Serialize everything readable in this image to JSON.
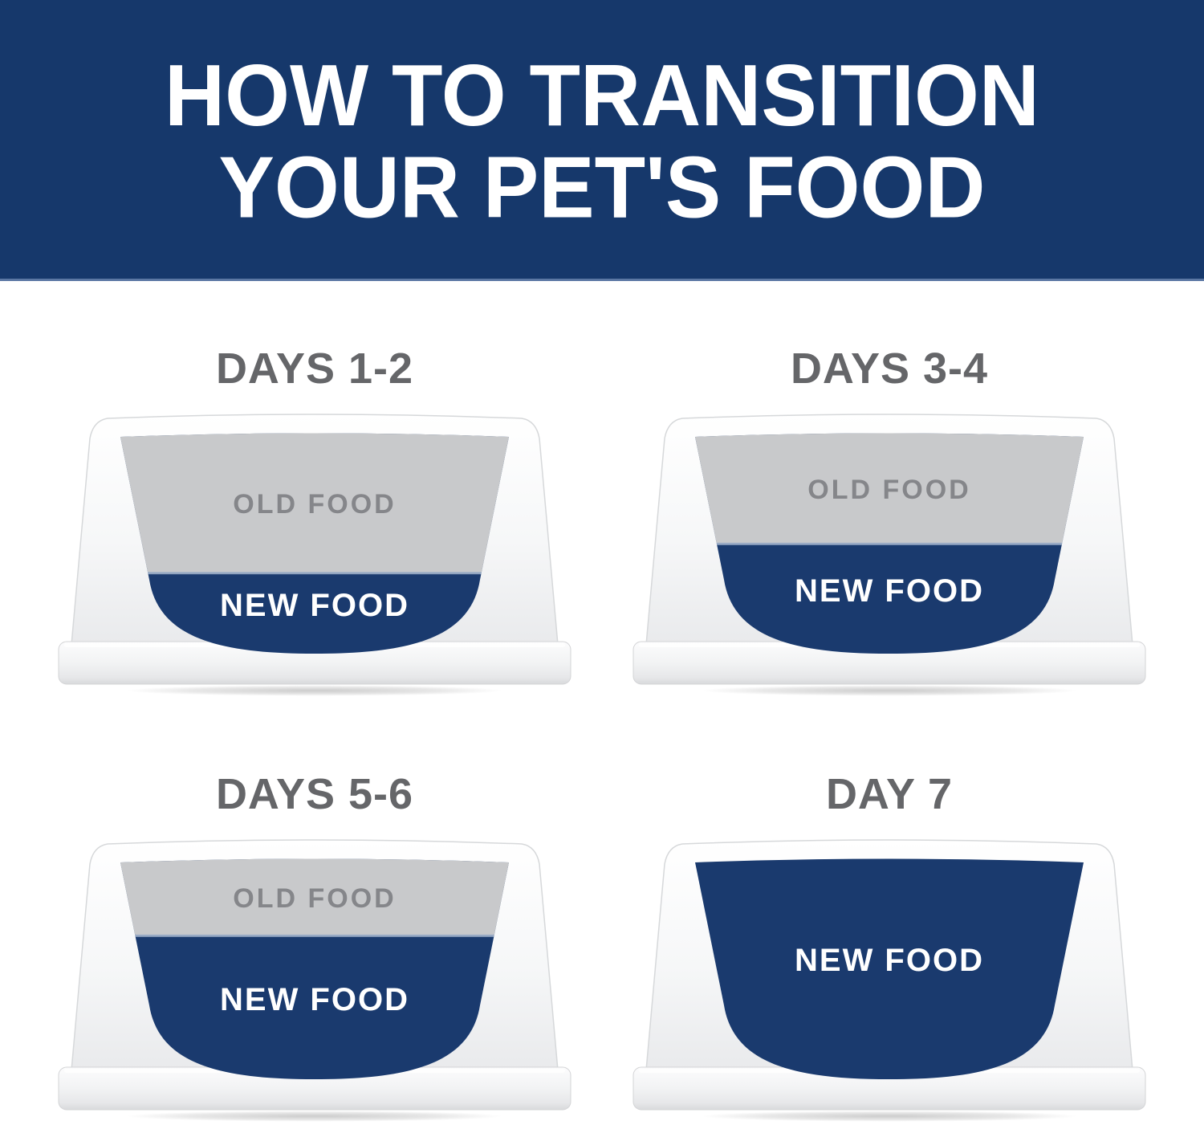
{
  "header": {
    "title_line1": "HOW TO TRANSITION",
    "title_line2": "YOUR PET'S FOOD"
  },
  "bowls": [
    {
      "title": "DAYS 1-2",
      "old_label": "OLD FOOD",
      "new_label": "NEW FOOD",
      "old_food_pct": 64,
      "new_food_pct": 36
    },
    {
      "title": "DAYS 3-4",
      "old_label": "OLD FOOD",
      "new_label": "NEW FOOD",
      "old_food_pct": 51,
      "new_food_pct": 49
    },
    {
      "title": "DAYS 5-6",
      "old_label": "OLD FOOD",
      "new_label": "NEW FOOD",
      "old_food_pct": 36,
      "new_food_pct": 64
    },
    {
      "title": "DAY 7",
      "new_label": "NEW FOOD",
      "old_food_pct": 0,
      "new_food_pct": 100
    }
  ],
  "colors": {
    "banner_bg": "#16386b",
    "banner_edge": "#5b77a3",
    "banner_text": "#ffffff",
    "day_title_text": "#656669",
    "old_food_fill": "#c8c9cb",
    "old_food_text": "#85868a",
    "new_food_fill": "#1a3a6e",
    "new_food_text": "#ffffff",
    "food_boundary_highlight": "#9fb0ca"
  }
}
